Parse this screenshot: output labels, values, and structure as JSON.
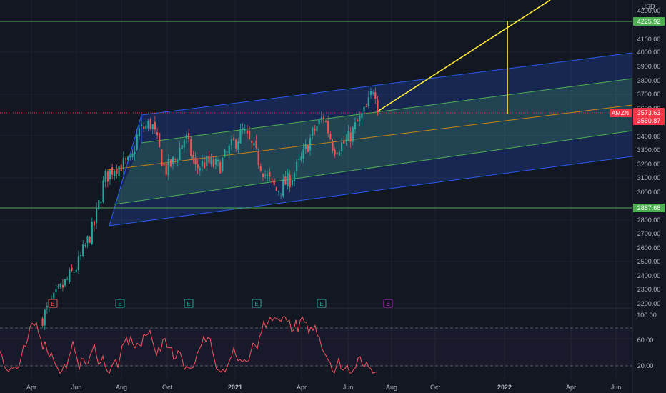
{
  "currency": "USD",
  "ticker": "AMZN",
  "price_axis": {
    "ticks": [
      "4200.00",
      "4100.00",
      "4000.00",
      "3900.00",
      "3800.00",
      "3700.00",
      "3600.00",
      "3500.00",
      "3400.00",
      "3300.00",
      "3200.00",
      "3100.00",
      "3000.00",
      "2900.00",
      "2800.00",
      "2700.00",
      "2600.00",
      "2500.00",
      "2400.00",
      "2300.00",
      "2200.00"
    ],
    "hidden_ticks": [
      "4200.00",
      "3600.00",
      "3500.00",
      "2900.00"
    ]
  },
  "time_axis": [
    "Apr",
    "Jun",
    "Aug",
    "Oct",
    "2021",
    "Apr",
    "Jun",
    "Aug",
    "Oct",
    "2022",
    "Apr",
    "Jun"
  ],
  "labels": {
    "resistance": "4225.92",
    "last_price": "3573.63",
    "countdown": "3560.87",
    "support": "2887.68"
  },
  "earnings_markers": [
    "E",
    "E",
    "E",
    "E",
    "E",
    "E"
  ],
  "oscillator": {
    "ticks": [
      "100.00",
      "60.00",
      "20.00"
    ]
  },
  "colors": {
    "background": "#131722",
    "grid": "#1e222d",
    "bull": "#26a69a",
    "bear": "#ef5350",
    "channel_outer": "#2962ff",
    "channel_inner": "#4caf50",
    "median": "#ff9800",
    "projection": "#ffeb3b",
    "last_price": "#f23645",
    "support_resistance": "#4caf50",
    "oscillator_line": "#f7525f",
    "oscillator_fill": "#7e57c2",
    "earnings_future": "#9c27b0"
  },
  "chart_data": {
    "type": "candlestick",
    "symbol": "AMZN",
    "currency": "USD",
    "last_price": 3573.63,
    "horizontal_levels": [
      4225.92,
      3573.63,
      2887.68
    ],
    "x_ticks": [
      "Apr",
      "Jun",
      "Aug",
      "Oct",
      "2021",
      "Apr",
      "Jun",
      "Aug",
      "Oct",
      "2022",
      "Apr",
      "Jun"
    ],
    "y_range": [
      2150,
      4270
    ],
    "y_ticks": [
      2200,
      2300,
      2400,
      2500,
      2600,
      2700,
      2800,
      2900,
      3000,
      3100,
      3200,
      3300,
      3400,
      3500,
      3600,
      3700,
      3800,
      3900,
      4000,
      4100,
      4200
    ],
    "price_path": [
      [
        0,
        2080
      ],
      [
        0.06,
        2300
      ],
      [
        0.11,
        2470
      ],
      [
        0.16,
        2760
      ],
      [
        0.19,
        3080
      ],
      [
        0.22,
        3170
      ],
      [
        0.27,
        3200
      ],
      [
        0.29,
        3420
      ],
      [
        0.33,
        3480
      ],
      [
        0.37,
        3140
      ],
      [
        0.4,
        3220
      ],
      [
        0.43,
        3390
      ],
      [
        0.46,
        3160
      ],
      [
        0.49,
        3200
      ],
      [
        0.53,
        3170
      ],
      [
        0.56,
        3290
      ],
      [
        0.6,
        3420
      ],
      [
        0.63,
        3300
      ],
      [
        0.67,
        3100
      ],
      [
        0.7,
        3000
      ],
      [
        0.74,
        3080
      ],
      [
        0.77,
        3200
      ],
      [
        0.81,
        3420
      ],
      [
        0.84,
        3530
      ],
      [
        0.87,
        3300
      ],
      [
        0.91,
        3350
      ],
      [
        0.94,
        3480
      ],
      [
        0.97,
        3590
      ],
      [
        0.99,
        3760
      ],
      [
        1,
        3600
      ]
    ],
    "oscillator": {
      "y_range": [
        0,
        100
      ],
      "y_ticks": [
        100,
        60,
        20
      ],
      "levels": [
        80,
        20
      ]
    }
  }
}
